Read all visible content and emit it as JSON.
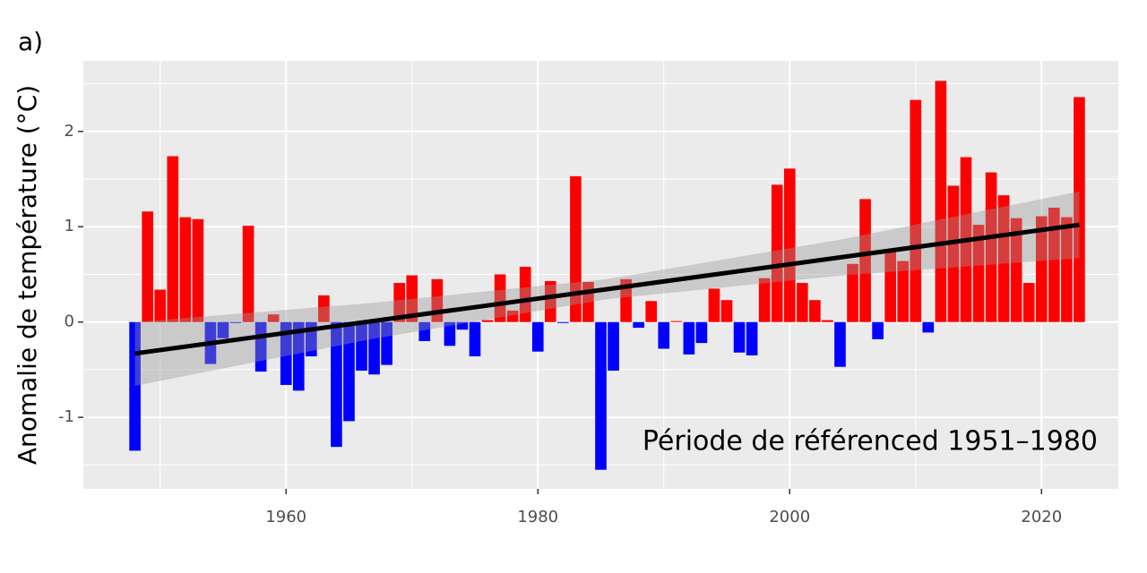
{
  "chart_data": {
    "type": "bar",
    "panel_label": "a)",
    "ylabel": "Anomalie de température (°C)",
    "annotation": "Période de référenced 1951–1980",
    "x": [
      1948,
      1949,
      1950,
      1951,
      1952,
      1953,
      1954,
      1955,
      1956,
      1957,
      1958,
      1959,
      1960,
      1961,
      1962,
      1963,
      1964,
      1965,
      1966,
      1967,
      1968,
      1969,
      1970,
      1971,
      1972,
      1973,
      1974,
      1975,
      1976,
      1977,
      1978,
      1979,
      1980,
      1981,
      1982,
      1983,
      1984,
      1985,
      1986,
      1987,
      1988,
      1989,
      1990,
      1991,
      1992,
      1993,
      1994,
      1995,
      1996,
      1997,
      1998,
      1999,
      2000,
      2001,
      2002,
      2003,
      2004,
      2005,
      2006,
      2007,
      2008,
      2009,
      2010,
      2011,
      2012,
      2013,
      2014,
      2015,
      2016,
      2017,
      2018,
      2019,
      2020,
      2021,
      2022,
      2023
    ],
    "values": [
      -1.35,
      1.16,
      0.34,
      1.74,
      1.1,
      1.08,
      -0.44,
      -0.17,
      -0.01,
      1.01,
      -0.52,
      0.08,
      -0.66,
      -0.72,
      -0.36,
      0.28,
      -1.31,
      -1.04,
      -0.51,
      -0.55,
      -0.45,
      0.41,
      0.49,
      -0.2,
      0.45,
      -0.25,
      -0.08,
      -0.36,
      0.02,
      0.5,
      0.12,
      0.58,
      -0.31,
      0.43,
      -0.01,
      1.53,
      0.42,
      -1.55,
      -0.51,
      0.45,
      -0.06,
      0.22,
      -0.28,
      0.01,
      -0.34,
      -0.22,
      0.35,
      0.23,
      -0.32,
      -0.35,
      0.46,
      1.44,
      1.61,
      0.41,
      0.23,
      0.02,
      -0.47,
      0.61,
      1.29,
      -0.18,
      0.74,
      0.64,
      2.33,
      -0.11,
      2.53,
      1.43,
      1.73,
      1.02,
      1.57,
      1.33,
      1.09,
      0.41,
      1.11,
      1.2,
      1.1,
      2.36
    ],
    "positive_color": "#ff0000",
    "negative_color": "#0000ff",
    "trend": {
      "x": [
        1948,
        1966.75,
        1985.5,
        2004.25,
        2023
      ],
      "values": [
        -0.33,
        0.0075,
        0.345,
        0.6825,
        1.02
      ],
      "lower": [
        -0.67,
        -0.18,
        0.24,
        0.49,
        0.67
      ],
      "upper": [
        0.0,
        0.2,
        0.45,
        0.87,
        1.37
      ],
      "color": "#000000",
      "band_color": "#999999"
    },
    "xlim": [
      1943.9,
      2026.1
    ],
    "ylim": [
      -1.75,
      2.74
    ],
    "xticks": [
      1960,
      1980,
      2000,
      2020
    ],
    "yticks": [
      -1,
      0,
      1,
      2
    ],
    "minor_xticks": [
      1950,
      1970,
      1990,
      2010
    ],
    "minor_yticks": [
      -1.5,
      -0.5,
      0.5,
      1.5,
      2.5
    ],
    "grid": true
  }
}
